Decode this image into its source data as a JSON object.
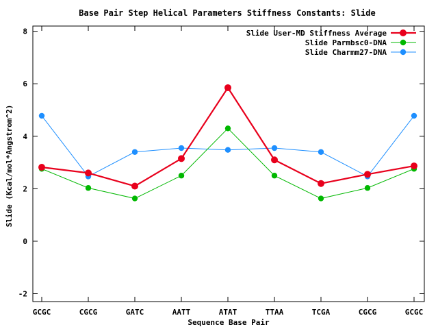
{
  "chart_data": {
    "type": "line",
    "title": "Base Pair Step Helical Parameters Stiffness Constants: Slide",
    "xlabel": "Sequence Base Pair",
    "ylabel": "Slide (Kcal/mol*Angstrom^2)",
    "categories": [
      "GCGC",
      "CGCG",
      "GATC",
      "AATT",
      "ATAT",
      "TTAA",
      "TCGA",
      "CGCG",
      "GCGC"
    ],
    "ylim": [
      -2.3,
      8.2
    ],
    "yticks": [
      -2,
      0,
      2,
      4,
      6,
      8
    ],
    "legend_position": "top-right",
    "grid": false,
    "series": [
      {
        "name": "Slide User-MD Stiffness Average",
        "color": "#e8001c",
        "values": [
          2.82,
          2.6,
          2.1,
          3.15,
          5.85,
          3.1,
          2.2,
          2.55,
          2.87
        ]
      },
      {
        "name": "Slide Parmbsc0-DNA",
        "color": "#00b800",
        "values": [
          2.76,
          2.03,
          1.63,
          2.5,
          4.3,
          2.5,
          1.63,
          2.03,
          2.76
        ]
      },
      {
        "name": "Slide Charmm27-DNA",
        "color": "#1e8fff",
        "values": [
          4.78,
          2.47,
          3.4,
          3.55,
          3.48,
          3.55,
          3.4,
          2.47,
          4.78
        ]
      }
    ]
  }
}
